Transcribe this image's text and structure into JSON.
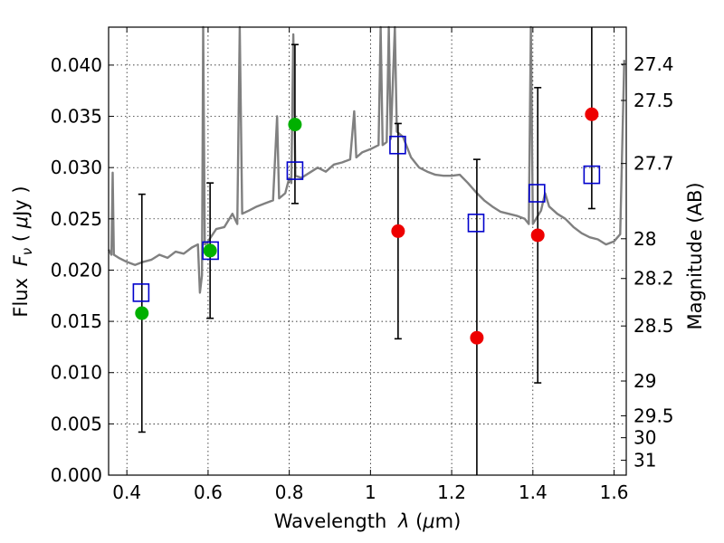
{
  "chart_data": {
    "type": "scatter",
    "xlabel_parts": [
      "Wavelength ",
      "λ",
      " (",
      "μ",
      "m)"
    ],
    "ylabel_parts": [
      "Flux ",
      "F",
      "ν",
      " ( ",
      "μ",
      "Jy )"
    ],
    "y2label": "Magnitude (AB)",
    "xlim": [
      0.355,
      1.63
    ],
    "ylim": [
      0.0,
      0.0437
    ],
    "grid": true,
    "x_ticks": [
      0.4,
      0.6,
      0.8,
      1,
      1.2,
      1.4,
      1.6
    ],
    "y_ticks": [
      0.0,
      0.005,
      0.01,
      0.015,
      0.02,
      0.025,
      0.03,
      0.035,
      0.04
    ],
    "y_tick_labels": [
      "0.000",
      "0.005",
      "0.010",
      "0.015",
      "0.020",
      "0.025",
      "0.030",
      "0.035",
      "0.040"
    ],
    "mag_ticks": [
      {
        "label": "27.4",
        "flux": 0.04008
      },
      {
        "label": "27.5",
        "flux": 0.03655
      },
      {
        "label": "27.7",
        "flux": 0.0304
      },
      {
        "label": "28",
        "flux": 0.02306
      },
      {
        "label": "28.2",
        "flux": 0.01918
      },
      {
        "label": "28.5",
        "flux": 0.01455
      },
      {
        "label": "29",
        "flux": 0.00918
      },
      {
        "label": "29.5",
        "flux": 0.00579
      },
      {
        "label": "30",
        "flux": 0.00365
      },
      {
        "label": "31",
        "flux": 0.00145
      }
    ],
    "colors": {
      "spectrum": "#808080",
      "model": "#0000cc",
      "green_points": "#00b000",
      "red_points": "#ee0000",
      "errorbar": "#000000"
    },
    "series": [
      {
        "marker": "open-square",
        "color": "#0000cc",
        "points": [
          {
            "x": 0.435,
            "y": 0.0178
          },
          {
            "x": 0.606,
            "y": 0.0219
          },
          {
            "x": 0.814,
            "y": 0.0297
          },
          {
            "x": 1.067,
            "y": 0.0322
          },
          {
            "x": 1.26,
            "y": 0.0246
          },
          {
            "x": 1.41,
            "y": 0.0275
          },
          {
            "x": 1.545,
            "y": 0.0293
          }
        ]
      },
      {
        "marker": "filled-circle",
        "color": "#00b000",
        "points": [
          {
            "x": 0.437,
            "y": 0.0158,
            "yerr": [
              0.0042,
              0.0274
            ]
          },
          {
            "x": 0.605,
            "y": 0.0219,
            "yerr": [
              0.0153,
              0.0285
            ]
          },
          {
            "x": 0.814,
            "y": 0.0342,
            "yerr": [
              0.0265,
              0.042
            ]
          }
        ]
      },
      {
        "marker": "filled-circle",
        "color": "#ee0000",
        "points": [
          {
            "x": 1.068,
            "y": 0.0238,
            "yerr": [
              0.0133,
              0.0343
            ]
          },
          {
            "x": 1.262,
            "y": 0.0134,
            "yerr": [
              0.0,
              0.0308
            ]
          },
          {
            "x": 1.412,
            "y": 0.0234,
            "yerr": [
              0.009,
              0.0378
            ]
          },
          {
            "x": 1.545,
            "y": 0.0352,
            "yerr": [
              0.026,
              0.0437
            ]
          }
        ]
      }
    ],
    "spectrum": [
      [
        0.355,
        0.022
      ],
      [
        0.362,
        0.0215
      ],
      [
        0.365,
        0.0295
      ],
      [
        0.368,
        0.0215
      ],
      [
        0.38,
        0.0212
      ],
      [
        0.4,
        0.0208
      ],
      [
        0.42,
        0.0205
      ],
      [
        0.44,
        0.0208
      ],
      [
        0.46,
        0.021
      ],
      [
        0.48,
        0.0215
      ],
      [
        0.5,
        0.0212
      ],
      [
        0.52,
        0.0218
      ],
      [
        0.54,
        0.0216
      ],
      [
        0.56,
        0.0222
      ],
      [
        0.575,
        0.0225
      ],
      [
        0.58,
        0.0178
      ],
      [
        0.585,
        0.0195
      ],
      [
        0.588,
        0.0437
      ],
      [
        0.592,
        0.0225
      ],
      [
        0.6,
        0.0228
      ],
      [
        0.62,
        0.024
      ],
      [
        0.64,
        0.0242
      ],
      [
        0.66,
        0.0255
      ],
      [
        0.672,
        0.0245
      ],
      [
        0.678,
        0.0437
      ],
      [
        0.684,
        0.0255
      ],
      [
        0.7,
        0.0258
      ],
      [
        0.72,
        0.0262
      ],
      [
        0.74,
        0.0265
      ],
      [
        0.76,
        0.0268
      ],
      [
        0.77,
        0.035
      ],
      [
        0.775,
        0.027
      ],
      [
        0.79,
        0.0275
      ],
      [
        0.8,
        0.029
      ],
      [
        0.805,
        0.0285
      ],
      [
        0.81,
        0.043
      ],
      [
        0.815,
        0.0292
      ],
      [
        0.83,
        0.029
      ],
      [
        0.85,
        0.0295
      ],
      [
        0.87,
        0.03
      ],
      [
        0.89,
        0.0296
      ],
      [
        0.91,
        0.0303
      ],
      [
        0.93,
        0.0305
      ],
      [
        0.95,
        0.0308
      ],
      [
        0.96,
        0.0355
      ],
      [
        0.965,
        0.031
      ],
      [
        0.98,
        0.0315
      ],
      [
        1.0,
        0.0318
      ],
      [
        1.02,
        0.0322
      ],
      [
        1.025,
        0.0437
      ],
      [
        1.03,
        0.0322
      ],
      [
        1.04,
        0.0325
      ],
      [
        1.045,
        0.0437
      ],
      [
        1.05,
        0.0328
      ],
      [
        1.06,
        0.0437
      ],
      [
        1.065,
        0.0335
      ],
      [
        1.08,
        0.033
      ],
      [
        1.1,
        0.031
      ],
      [
        1.12,
        0.03
      ],
      [
        1.14,
        0.0296
      ],
      [
        1.16,
        0.0293
      ],
      [
        1.18,
        0.0292
      ],
      [
        1.2,
        0.0292
      ],
      [
        1.22,
        0.0293
      ],
      [
        1.24,
        0.0285
      ],
      [
        1.26,
        0.0276
      ],
      [
        1.28,
        0.0268
      ],
      [
        1.3,
        0.0262
      ],
      [
        1.32,
        0.0257
      ],
      [
        1.34,
        0.0255
      ],
      [
        1.36,
        0.0253
      ],
      [
        1.38,
        0.025
      ],
      [
        1.39,
        0.0245
      ],
      [
        1.395,
        0.0437
      ],
      [
        1.4,
        0.0245
      ],
      [
        1.42,
        0.0258
      ],
      [
        1.43,
        0.0275
      ],
      [
        1.44,
        0.0262
      ],
      [
        1.46,
        0.0255
      ],
      [
        1.48,
        0.025
      ],
      [
        1.5,
        0.0242
      ],
      [
        1.52,
        0.0236
      ],
      [
        1.54,
        0.0232
      ],
      [
        1.56,
        0.023
      ],
      [
        1.58,
        0.0225
      ],
      [
        1.6,
        0.0228
      ],
      [
        1.615,
        0.0235
      ],
      [
        1.625,
        0.0405
      ]
    ]
  }
}
